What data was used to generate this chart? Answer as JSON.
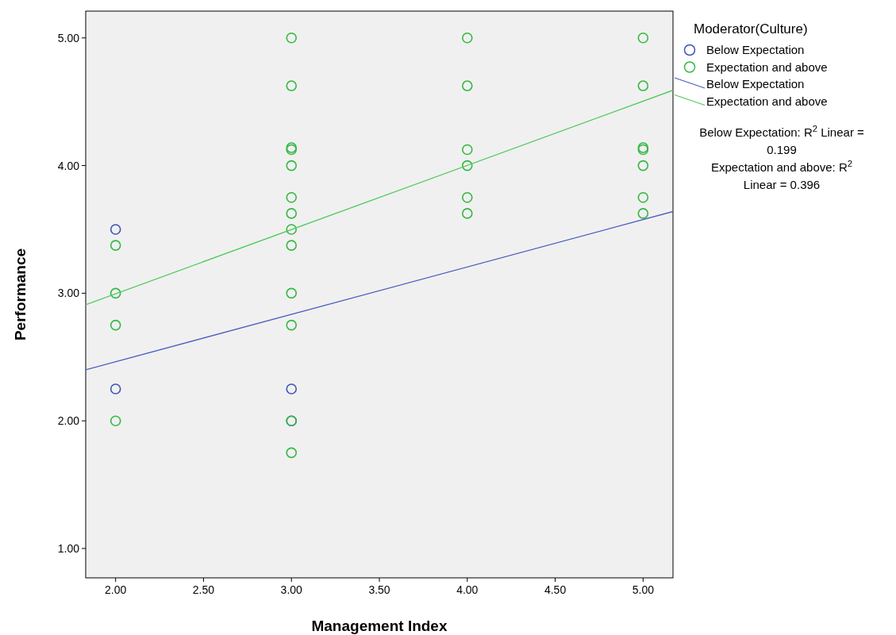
{
  "chart_data": {
    "type": "scatter",
    "xlabel": "Management Index",
    "ylabel": "Performance",
    "legend_title": "Moderator(Culture)",
    "legend": "right",
    "marker": "circle",
    "grid": false,
    "xlim": [
      1.83,
      5.17
    ],
    "ylim": [
      0.77,
      5.21
    ],
    "xticks": [
      {
        "value": 2,
        "label": "2.00"
      },
      {
        "value": 2.5,
        "label": "2.50"
      },
      {
        "value": 3,
        "label": "3.00"
      },
      {
        "value": 3.5,
        "label": "3.50"
      },
      {
        "value": 4,
        "label": "4.00"
      },
      {
        "value": 4.5,
        "label": "4.50"
      },
      {
        "value": 5,
        "label": "5.00"
      }
    ],
    "yticks": [
      {
        "value": 1,
        "label": "1.00"
      },
      {
        "value": 2,
        "label": "2.00"
      },
      {
        "value": 3,
        "label": "3.00"
      },
      {
        "value": 4,
        "label": "4.00"
      },
      {
        "value": 5,
        "label": "5.00"
      }
    ],
    "series": [
      {
        "name": "Below Expectation",
        "color": "#3b55b8",
        "x": [
          2,
          2,
          3,
          3
        ],
        "values": [
          3.5,
          2.25,
          2.25,
          2.0
        ]
      },
      {
        "name": "Expectation and above",
        "color": "#36b845",
        "x": [
          2,
          2,
          2,
          2,
          3,
          3,
          3,
          3,
          3,
          3,
          3,
          3,
          3,
          3,
          3,
          3,
          3,
          4,
          4,
          4,
          4,
          4,
          4,
          5,
          5,
          5,
          5,
          5,
          5,
          5
        ],
        "values": [
          3.375,
          3.0,
          2.75,
          2.0,
          5.0,
          4.625,
          4.14,
          4.125,
          4.0,
          3.75,
          3.625,
          3.5,
          3.375,
          3.0,
          2.75,
          2.0,
          1.75,
          5.0,
          4.625,
          4.125,
          4.0,
          3.75,
          3.625,
          5.0,
          4.625,
          4.14,
          4.125,
          4.0,
          3.75,
          3.625
        ]
      },
      {
        "name": "Below Expectation",
        "type": "line",
        "marker": "none",
        "color": "#4a5fc0",
        "x": [
          1.83,
          5.17
        ],
        "values": [
          2.4,
          3.64
        ]
      },
      {
        "name": "Expectation and above",
        "type": "line",
        "marker": "none",
        "color": "#4cc95a",
        "x": [
          1.83,
          5.17
        ],
        "values": [
          2.91,
          4.59
        ]
      }
    ],
    "annotations": [
      "Below Expectation: R$^{2}$ Linear = 0.199",
      "Expectation and above: R$^{2}$ Linear = 0.396"
    ]
  }
}
